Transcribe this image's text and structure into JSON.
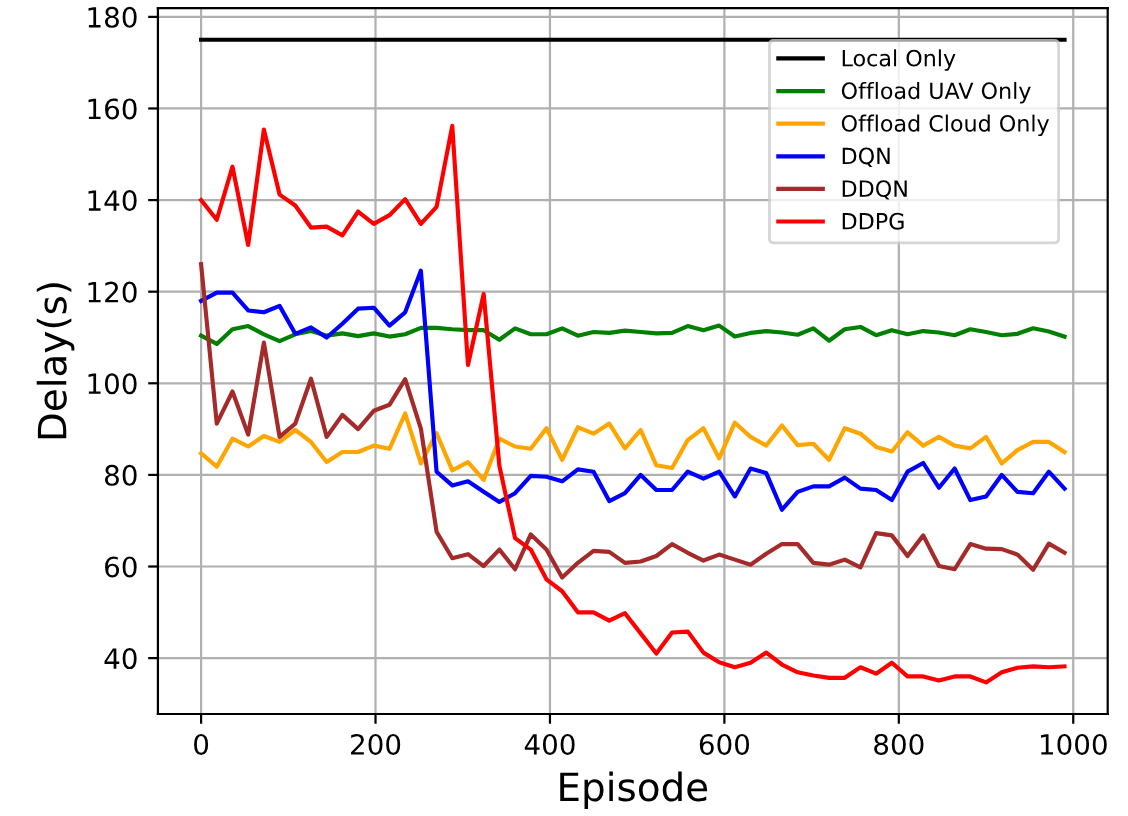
{
  "chart_data": {
    "type": "line",
    "xlabel": "Episode",
    "ylabel": "Delay(s)",
    "x": [
      0,
      18,
      36,
      54,
      72,
      90,
      108,
      126,
      144,
      162,
      180,
      198,
      216,
      234,
      252,
      270,
      288,
      306,
      324,
      342,
      360,
      378,
      396,
      414,
      432,
      450,
      468,
      486,
      504,
      522,
      540,
      558,
      576,
      594,
      612,
      630,
      648,
      666,
      684,
      702,
      720,
      738,
      756,
      774,
      792,
      810,
      828,
      846,
      864,
      882,
      900,
      918,
      936,
      954,
      972,
      990
    ],
    "xlim": [
      -49.5,
      1039.5
    ],
    "ylim": [
      27.8,
      181.9
    ],
    "xticks": [
      0,
      200,
      400,
      600,
      800,
      1000
    ],
    "yticks": [
      40,
      60,
      80,
      100,
      120,
      140,
      160,
      180
    ],
    "grid": true,
    "legend": "top right",
    "line_style": "solid",
    "marker": "none",
    "series": [
      {
        "name": "Local Only",
        "color": "#000000",
        "values": [
          175,
          175,
          175,
          175,
          175,
          175,
          175,
          175,
          175,
          175,
          175,
          175,
          175,
          175,
          175,
          175,
          175,
          175,
          175,
          175,
          175,
          175,
          175,
          175,
          175,
          175,
          175,
          175,
          175,
          175,
          175,
          175,
          175,
          175,
          175,
          175,
          175,
          175,
          175,
          175,
          175,
          175,
          175,
          175,
          175,
          175,
          175,
          175,
          175,
          175,
          175,
          175,
          175,
          175,
          175,
          175
        ]
      },
      {
        "name": "Offload UAV Only",
        "color": "#008000",
        "values": [
          110.4,
          108.6,
          111.8,
          112.5,
          110.7,
          109.2,
          110.7,
          111.4,
          110.4,
          110.9,
          110.3,
          110.9,
          110.2,
          110.7,
          112.1,
          112.1,
          111.8,
          111.6,
          111.6,
          109.5,
          112,
          110.7,
          110.7,
          112,
          110.4,
          111.2,
          111,
          111.5,
          111.2,
          110.9,
          111,
          112.5,
          111.6,
          112.6,
          110.2,
          111,
          111.4,
          111.1,
          110.6,
          112,
          109.3,
          111.8,
          112.3,
          110.5,
          111.6,
          110.7,
          111.4,
          111.1,
          110.5,
          111.8,
          111.2,
          110.5,
          110.8,
          112,
          111.3,
          110.2
        ]
      },
      {
        "name": "Offload Cloud Only",
        "color": "#ffa500",
        "values": [
          84.7,
          81.8,
          87.9,
          86.2,
          88.5,
          87.2,
          89.8,
          87.2,
          82.8,
          85,
          85,
          86.4,
          85.7,
          93.4,
          82.5,
          89.1,
          81,
          82.8,
          78.9,
          87.9,
          86.2,
          85.7,
          90.2,
          83.3,
          90.4,
          89,
          91.2,
          85.8,
          89.8,
          82.1,
          81.5,
          87.6,
          90.2,
          83.6,
          91.4,
          88.3,
          86.4,
          90.8,
          86.5,
          86.8,
          83.3,
          90.2,
          89,
          86.1,
          85.1,
          89.3,
          86.4,
          88.3,
          86.4,
          85.8,
          88.3,
          82.5,
          85.4,
          87.2,
          87.2,
          85
        ]
      },
      {
        "name": "DQN",
        "color": "#0000ff",
        "values": [
          118,
          119.8,
          119.8,
          115.9,
          115.5,
          116.9,
          110.8,
          112.2,
          110,
          113,
          116.3,
          116.5,
          112.6,
          115.5,
          124.6,
          80.7,
          77.7,
          78.6,
          76.3,
          74.1,
          76,
          79.8,
          79.6,
          78.6,
          81.2,
          80.7,
          74.3,
          76,
          80,
          76.7,
          76.7,
          80.7,
          79.2,
          80.7,
          75.3,
          81.4,
          80.4,
          72.4,
          76.3,
          77.5,
          77.5,
          79.4,
          77,
          76.7,
          74.5,
          80.7,
          82.6,
          77.2,
          81.4,
          74.5,
          75.3,
          80,
          76.3,
          76,
          80.7,
          77
        ]
      },
      {
        "name": "DDQN",
        "color": "#a52a2a",
        "values": [
          126,
          91.2,
          98.2,
          88.8,
          108.9,
          88.3,
          91.2,
          101,
          88.3,
          93.1,
          90,
          94,
          95.3,
          100.9,
          90.1,
          67.6,
          61.8,
          62.7,
          60.1,
          63.7,
          59.4,
          67,
          63.7,
          57.6,
          60.8,
          63.4,
          63.2,
          60.8,
          61.1,
          62.3,
          64.9,
          63,
          61.3,
          62.6,
          61.5,
          60.4,
          62.8,
          64.9,
          64.9,
          60.8,
          60.4,
          61.5,
          59.8,
          67.3,
          66.8,
          62.3,
          66.8,
          60.1,
          59.4,
          64.9,
          63.9,
          63.8,
          62.6,
          59.3,
          65,
          63
        ]
      },
      {
        "name": "DDPG",
        "color": "#ff0000",
        "values": [
          140,
          135.7,
          147.3,
          130.2,
          155.4,
          141.2,
          138.8,
          134,
          134.2,
          132.3,
          137.5,
          134.8,
          136.7,
          140.2,
          134.8,
          138.5,
          156.2,
          104,
          119.5,
          82,
          66.2,
          63.7,
          57.2,
          54.6,
          50,
          50,
          48.2,
          49.8,
          45.4,
          41,
          45.6,
          45.8,
          41.2,
          39.1,
          38,
          39,
          41.2,
          38.6,
          36.9,
          36.2,
          35.7,
          35.7,
          38,
          36.6,
          39,
          36,
          36,
          35.1,
          36,
          36,
          34.7,
          36.9,
          37.9,
          38.2,
          38,
          38.2
        ]
      }
    ]
  }
}
